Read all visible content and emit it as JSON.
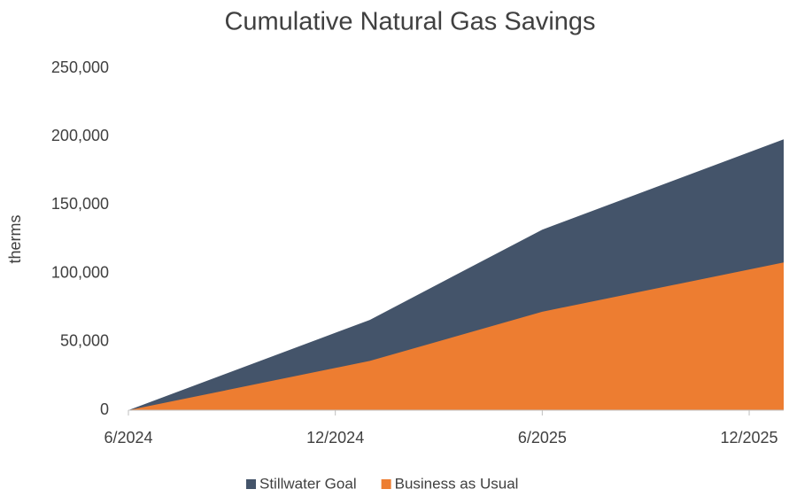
{
  "chart_data": {
    "type": "area",
    "title": "Cumulative Natural Gas Savings",
    "y_label": "therms",
    "x": [
      "2024-06",
      "2025-01",
      "2025-06",
      "2026-01"
    ],
    "series": [
      {
        "name": "Stillwater Goal",
        "color": "#44546a",
        "values": [
          0,
          66000,
          132000,
          198000
        ]
      },
      {
        "name": "Business as Usual",
        "color": "#ed7d31",
        "values": [
          0,
          36000,
          72000,
          108000
        ]
      }
    ],
    "xlim": [
      "2024-06",
      "2026-01"
    ],
    "xticks": [
      {
        "value": "2024-06",
        "label": "6/2024"
      },
      {
        "value": "2024-12",
        "label": "12/2024"
      },
      {
        "value": "2025-06",
        "label": "6/2025"
      },
      {
        "value": "2025-12",
        "label": "12/2025"
      }
    ],
    "ylim": [
      0,
      250000
    ],
    "yticks": [
      {
        "value": 0,
        "label": "0"
      },
      {
        "value": 50000,
        "label": "50,000"
      },
      {
        "value": 100000,
        "label": "100,000"
      },
      {
        "value": 150000,
        "label": "150,000"
      },
      {
        "value": 200000,
        "label": "200,000"
      },
      {
        "value": 250000,
        "label": "250,000"
      }
    ],
    "legend": "bottom",
    "grid": false
  }
}
